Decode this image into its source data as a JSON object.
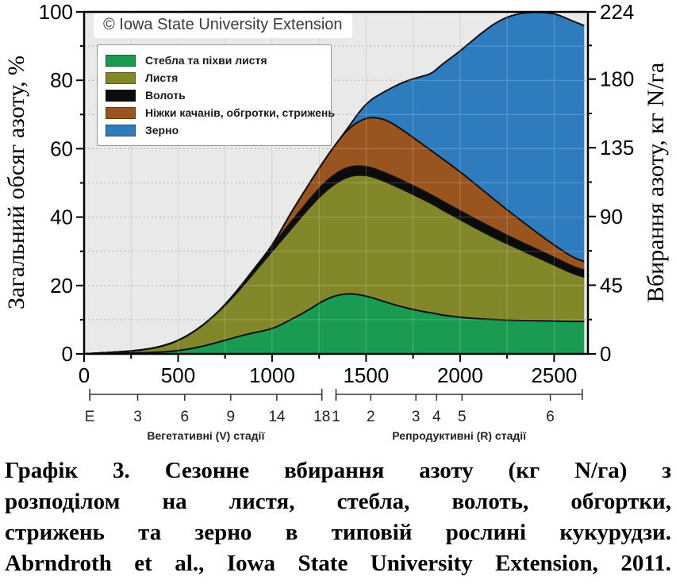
{
  "chart_data": {
    "type": "area",
    "stacked": true,
    "watermark": "© Iowa State University Extension",
    "grid": {
      "vertical_step_x": 250,
      "horizontal_step_pct": 10
    },
    "x_axis": {
      "range": [
        0,
        2680
      ],
      "major_ticks": [
        0,
        500,
        1000,
        1500,
        2000,
        2500
      ],
      "minor_ticks": [
        250,
        750,
        1250,
        1750,
        2250
      ]
    },
    "y_left": {
      "label": "Загальний обсяг азоту, %",
      "range": [
        0,
        100
      ],
      "major_ticks": [
        0,
        20,
        40,
        60,
        80,
        100
      ],
      "minor_ticks": [
        10,
        30,
        50,
        70,
        90
      ]
    },
    "y_right": {
      "label": "Вбирання азоту, кг N/га",
      "range": [
        0,
        224
      ],
      "major_ticks": [
        0,
        45,
        90,
        135,
        180,
        224
      ],
      "minor_ticks": [
        22.5,
        67.5,
        112.5,
        157.5,
        202
      ]
    },
    "legend_position": "top-left",
    "x": [
      0,
      100,
      200,
      300,
      400,
      500,
      600,
      700,
      800,
      900,
      1000,
      1100,
      1200,
      1300,
      1400,
      1500,
      1600,
      1700,
      1800,
      1850,
      1900,
      2000,
      2100,
      2200,
      2300,
      2400,
      2500,
      2600,
      2660
    ],
    "series": [
      {
        "name": "Стебла та піхви листя",
        "color": "#1a9b52",
        "values": [
          0,
          0.1,
          0.2,
          0.3,
          0.5,
          0.9,
          1.8,
          3.2,
          4.8,
          6.2,
          7.2,
          10,
          13,
          16.5,
          17.8,
          17,
          15.2,
          13.6,
          12.4,
          12,
          11.4,
          10.7,
          10.2,
          10,
          9.8,
          9.7,
          9.6,
          9.5,
          9.5
        ]
      },
      {
        "name": "Листя",
        "color": "#828729",
        "values": [
          0,
          0.2,
          0.4,
          0.8,
          1.5,
          2.9,
          5.2,
          8.3,
          12.2,
          17.3,
          22.8,
          26.5,
          30,
          32,
          34.2,
          35.5,
          35.3,
          34.4,
          32.9,
          32,
          30.9,
          28.6,
          26.1,
          23.5,
          21.2,
          18.8,
          16.4,
          14,
          13
        ]
      },
      {
        "name": "Волоть",
        "color": "#0b0b0b",
        "values": [
          0,
          0,
          0,
          0,
          0,
          0,
          0,
          0,
          0.5,
          1,
          1.5,
          2,
          2.3,
          2.8,
          2.8,
          2.5,
          2.5,
          2.5,
          2.5,
          2.4,
          2.5,
          2.5,
          2.5,
          2.5,
          2.3,
          2.3,
          2.2,
          2,
          2
        ]
      },
      {
        "name": "Ніжки качанів, обгротки, стрижень",
        "color": "#99541f",
        "values": [
          0,
          0,
          0,
          0,
          0,
          0,
          0,
          0,
          0,
          0,
          0,
          2.8,
          4.7,
          7.2,
          11,
          14.3,
          15.8,
          14.8,
          13.5,
          12.9,
          12.5,
          11.5,
          10,
          8.3,
          6.7,
          5,
          3.6,
          2.7,
          2.5
        ]
      },
      {
        "name": "Зерно",
        "color": "#2e7cbe",
        "values": [
          0,
          0,
          0,
          0,
          0,
          0,
          0,
          0,
          0,
          0,
          0,
          0,
          0,
          0,
          0,
          4.2,
          8,
          14.3,
          19.9,
          22.7,
          27.2,
          35.2,
          44.5,
          53,
          59.5,
          64.2,
          67.9,
          69.1,
          69
        ]
      }
    ],
    "stage_axis": {
      "vegetative": {
        "label": "Вегетативні (V) стадії",
        "line": [
          30,
          1265
        ],
        "ticks": [
          {
            "t": "E",
            "x": 30
          },
          {
            "t": "3",
            "x": 285
          },
          {
            "t": "6",
            "x": 535
          },
          {
            "t": "9",
            "x": 780
          },
          {
            "t": "14",
            "x": 1025
          },
          {
            "t": "18",
            "x": 1265
          }
        ]
      },
      "reproductive": {
        "label": "Репродуктивні (R) стадії",
        "line": [
          1340,
          2650
        ],
        "ticks": [
          {
            "t": "1",
            "x": 1340
          },
          {
            "t": "2",
            "x": 1525
          },
          {
            "t": "3",
            "x": 1765
          },
          {
            "t": "4",
            "x": 1875
          },
          {
            "t": "5",
            "x": 2010
          },
          {
            "t": "6",
            "x": 2480
          }
        ]
      }
    },
    "colors": {
      "plot_background": "#e9e9e9",
      "grid_vertical": "#c9c9c9",
      "grid_horizontal": "#9e9e9e",
      "boundary_stroke": "#111111",
      "axis_box": "#000000"
    }
  },
  "caption": {
    "lines": [
      "Графік 3. Сезонне вбирання азоту (кг N/га) з",
      "розподілом на листя, стебла, волоть, обгортки,",
      "стрижень та зерно в типовій рослині кукурудзи.",
      "Abrndroth et al., Iowa State University Extension, 2011."
    ]
  }
}
